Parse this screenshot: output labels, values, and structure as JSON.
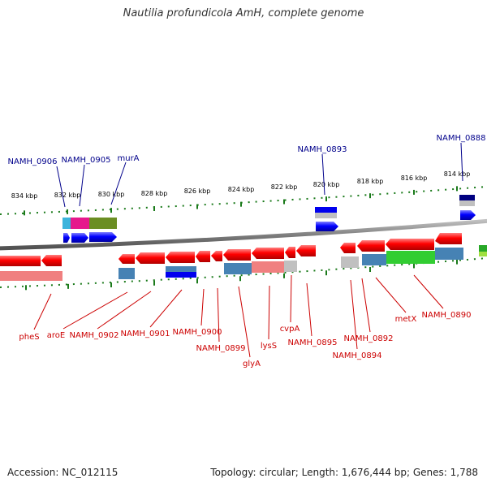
{
  "title": "Nautilia profundicola AmH, complete genome",
  "footer": {
    "accession": "Accession: NC_012115",
    "summary": "Topology: circular; Length: 1,676,444 bp; Genes: 1,788"
  },
  "axis": {
    "ticks": [
      {
        "label": "834 kbp"
      },
      {
        "label": "832 kbp"
      },
      {
        "label": "830 kbp"
      },
      {
        "label": "828 kbp"
      },
      {
        "label": "826 kbp"
      },
      {
        "label": "824 kbp"
      },
      {
        "label": "822 kbp"
      },
      {
        "label": "820 kbp"
      },
      {
        "label": "818 kbp"
      },
      {
        "label": "816 kbp"
      },
      {
        "label": "814 kbp"
      }
    ]
  },
  "top_genes": [
    "NAMH_0906",
    "NAMH_0905",
    "murA",
    "NAMH_0893",
    "NAMH_0888"
  ],
  "bottom_genes": [
    "pheS",
    "aroE",
    "NAMH_0902",
    "NAMH_0901",
    "NAMH_0900",
    "NAMH_0899",
    "glyA",
    "lysS",
    "cvpA",
    "NAMH_0895",
    "NAMH_0894",
    "NAMH_0892",
    "metX",
    "NAMH_0890"
  ],
  "colors": {
    "forward_strand": "#0000ff",
    "reverse_strand": "#ff0000",
    "top_label": "#00008b",
    "bottom_label": "#cc0000",
    "tick": "#1a7a1a",
    "backbone": "#808080"
  }
}
